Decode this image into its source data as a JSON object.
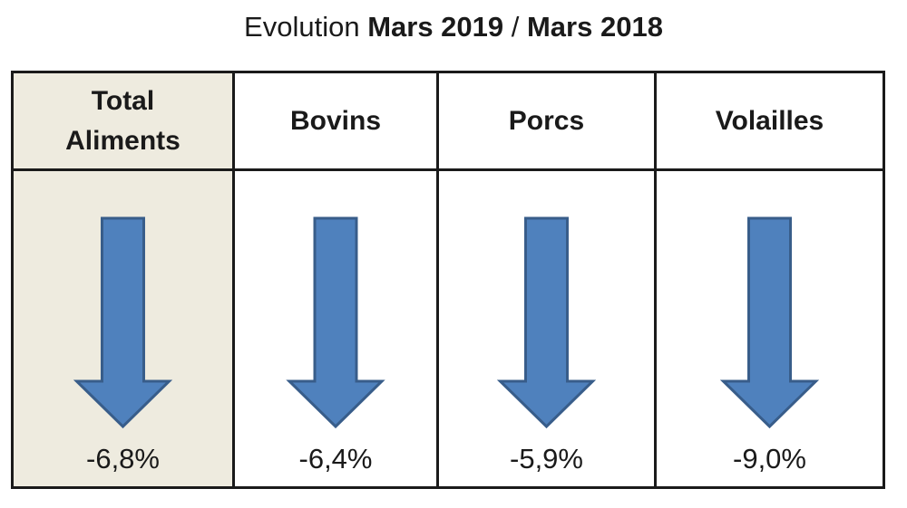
{
  "title": {
    "prefix": "Evolution ",
    "period1": "Mars 2019",
    "separator": " / ",
    "period2": "Mars 2018"
  },
  "colors": {
    "arrow_fill": "#4f81bd",
    "arrow_stroke": "#385d8a",
    "highlight_bg": "#eeebdf",
    "border": "#1a1a1a"
  },
  "chart_data": {
    "type": "table",
    "title": "Evolution Mars 2019 / Mars 2018",
    "categories": [
      "Total Aliments",
      "Bovins",
      "Porcs",
      "Volailles"
    ],
    "values": [
      -6.8,
      -6.4,
      -5.9,
      -9.0
    ],
    "unit": "%",
    "columns": [
      {
        "header_line1": "Total",
        "header_line2": "Aliments",
        "value_label": "-6,8%",
        "value": -6.8,
        "direction": "down",
        "highlighted": true,
        "icon": "arrow-down-icon"
      },
      {
        "header_line1": "Bovins",
        "header_line2": "",
        "value_label": "-6,4%",
        "value": -6.4,
        "direction": "down",
        "highlighted": false,
        "icon": "arrow-down-icon"
      },
      {
        "header_line1": "Porcs",
        "header_line2": "",
        "value_label": "-5,9%",
        "value": -5.9,
        "direction": "down",
        "highlighted": false,
        "icon": "arrow-down-icon"
      },
      {
        "header_line1": "Volailles",
        "header_line2": "",
        "value_label": "-9,0%",
        "value": -9.0,
        "direction": "down",
        "highlighted": false,
        "icon": "arrow-down-icon"
      }
    ]
  }
}
